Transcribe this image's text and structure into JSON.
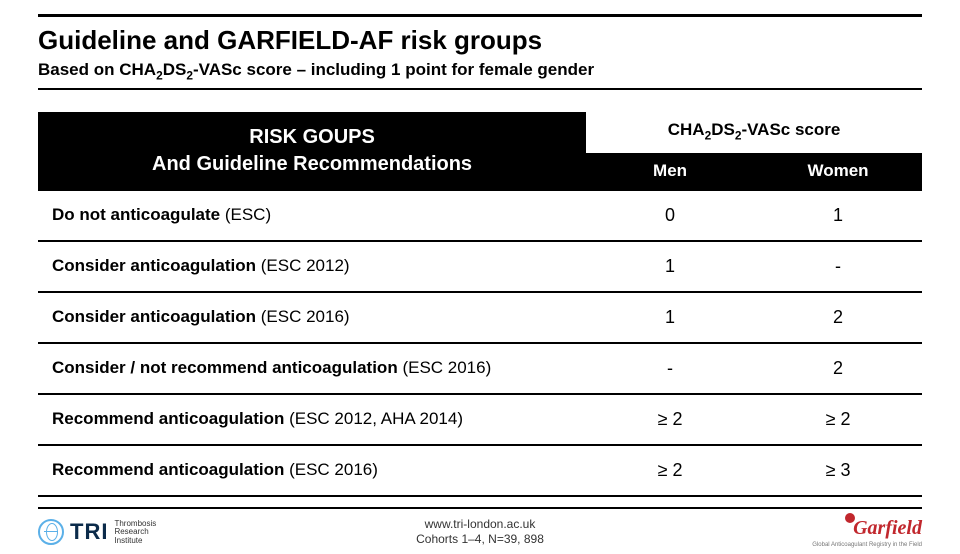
{
  "page": {
    "title_plain": "Guideline and GARFIELD-AF risk groups",
    "subtitle_prefix": "Based on CHA",
    "subtitle_mid": "DS",
    "subtitle_suffix": "-VASc score – including 1 point for female gender",
    "sub2": "2"
  },
  "table": {
    "left_header_line1": "RISK GOUPS",
    "left_header_line2": "And Guideline Recommendations",
    "top_header_prefix": "CHA",
    "top_header_mid": "DS",
    "top_header_suffix": "-VASc score",
    "col_men": "Men",
    "col_women": "Women",
    "rows": [
      {
        "label": "Do not anticoagulate",
        "paren": "(ESC)",
        "men": "0",
        "women": "1"
      },
      {
        "label": "Consider anticoagulation",
        "paren": "(ESC 2012)",
        "men": "1",
        "women": "-"
      },
      {
        "label": "Consider anticoagulation",
        "paren": "(ESC 2016)",
        "men": "1",
        "women": "2"
      },
      {
        "label": "Consider / not recommend anticoagulation",
        "paren": "(ESC 2016)",
        "men": "-",
        "women": "2"
      },
      {
        "label": "Recommend anticoagulation",
        "paren": "(ESC 2012, AHA 2014)",
        "men": "≥ 2",
        "women": "≥ 2"
      },
      {
        "label": "Recommend anticoagulation",
        "paren": "(ESC 2016)",
        "men": "≥ 2",
        "women": "≥ 3"
      }
    ]
  },
  "footer": {
    "url": "www.tri-london.ac.uk",
    "cohorts": "Cohorts 1–4, N=39, 898",
    "tri_name": "TRI",
    "tri_sub": "Thrombosis\nResearch\nInstitute",
    "gar_name": "Garfield",
    "gar_sub": "Global Anticoagulant Registry in the Field"
  },
  "colors": {
    "header_bg": "#000000",
    "header_fg": "#ffffff",
    "rule": "#000000",
    "tri_blue": "#5bb0e8",
    "tri_navy": "#0b2b4a",
    "gar_red": "#c1272d"
  }
}
